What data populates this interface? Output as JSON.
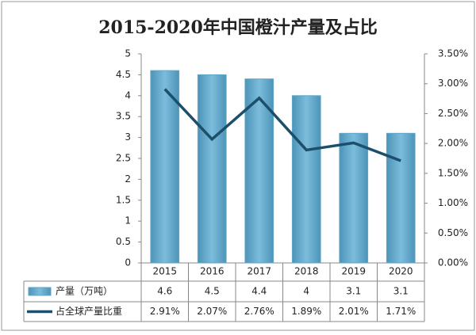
{
  "chart_data": {
    "type": "bar-line",
    "title": "2015-2020年中国橙汁产量及占比",
    "categories": [
      "2015",
      "2016",
      "2017",
      "2018",
      "2019",
      "2020"
    ],
    "series": [
      {
        "name": "产量（万吨）",
        "type": "bar",
        "color": "#5fa6c9",
        "values": [
          4.6,
          4.5,
          4.4,
          4,
          3.1,
          3.1
        ]
      },
      {
        "name": "占全球产量比重",
        "type": "line",
        "axis": "y2",
        "color": "#1b4f6b",
        "values": [
          2.91,
          2.07,
          2.76,
          1.89,
          2.01,
          1.71
        ],
        "value_labels": [
          "2.91%",
          "2.07%",
          "2.76%",
          "1.89%",
          "2.01%",
          "1.71%"
        ]
      }
    ],
    "ylim": [
      0,
      5
    ],
    "yticks": [
      0,
      0.5,
      1,
      1.5,
      2,
      2.5,
      3,
      3.5,
      4,
      4.5,
      5
    ],
    "y2lim": [
      0,
      3.5
    ],
    "y2ticks": [
      {
        "value": 0,
        "label": "0.00%"
      },
      {
        "value": 0.5,
        "label": "0.50%"
      },
      {
        "value": 1,
        "label": "1.00%"
      },
      {
        "value": 1.5,
        "label": "1.50%"
      },
      {
        "value": 2,
        "label": "2.00%"
      },
      {
        "value": 2.5,
        "label": "2.50%"
      },
      {
        "value": 3,
        "label": "3.00%"
      },
      {
        "value": 3.5,
        "label": "3.50%"
      }
    ],
    "grid": false
  }
}
